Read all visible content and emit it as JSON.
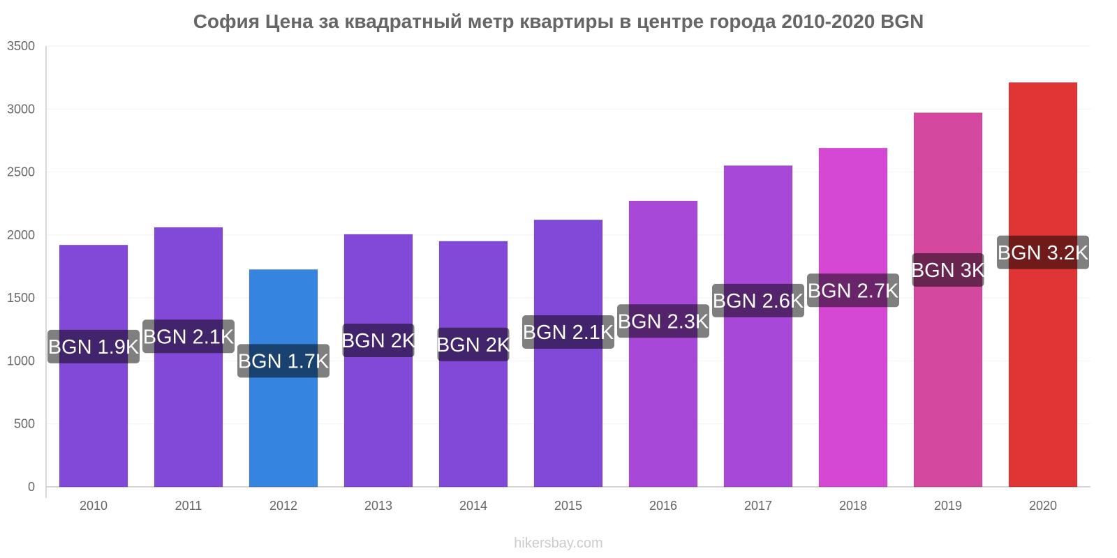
{
  "chart_data": {
    "type": "bar",
    "title": "София Цена за квадратный метр квартиры в центре города 2010-2020 BGN",
    "categories": [
      "2010",
      "2011",
      "2012",
      "2013",
      "2014",
      "2015",
      "2016",
      "2017",
      "2018",
      "2019",
      "2020"
    ],
    "values": [
      1920,
      2060,
      1725,
      2005,
      1950,
      2120,
      2270,
      2550,
      2690,
      2970,
      3210
    ],
    "data_labels": [
      "BGN 1.9K",
      "BGN 2.1K",
      "BGN 1.7K",
      "BGN 2K",
      "BGN 2K",
      "BGN 2.1K",
      "BGN 2.3K",
      "BGN 2.6K",
      "BGN 2.7K",
      "BGN 3K",
      "BGN 3.2K"
    ],
    "bar_colors": [
      "#8248d8",
      "#8248d8",
      "#3584e0",
      "#8248d8",
      "#8248d8",
      "#8248d8",
      "#a748d8",
      "#a748d8",
      "#d448d4",
      "#d448a0",
      "#e03535"
    ],
    "y_ticks": [
      "0",
      "500",
      "1000",
      "1500",
      "2000",
      "2500",
      "3000",
      "3500"
    ],
    "ylim": [
      0,
      3500
    ],
    "xlabel": "",
    "ylabel": "",
    "grid": true,
    "legend": "none"
  },
  "watermark": "hikersbay.com"
}
